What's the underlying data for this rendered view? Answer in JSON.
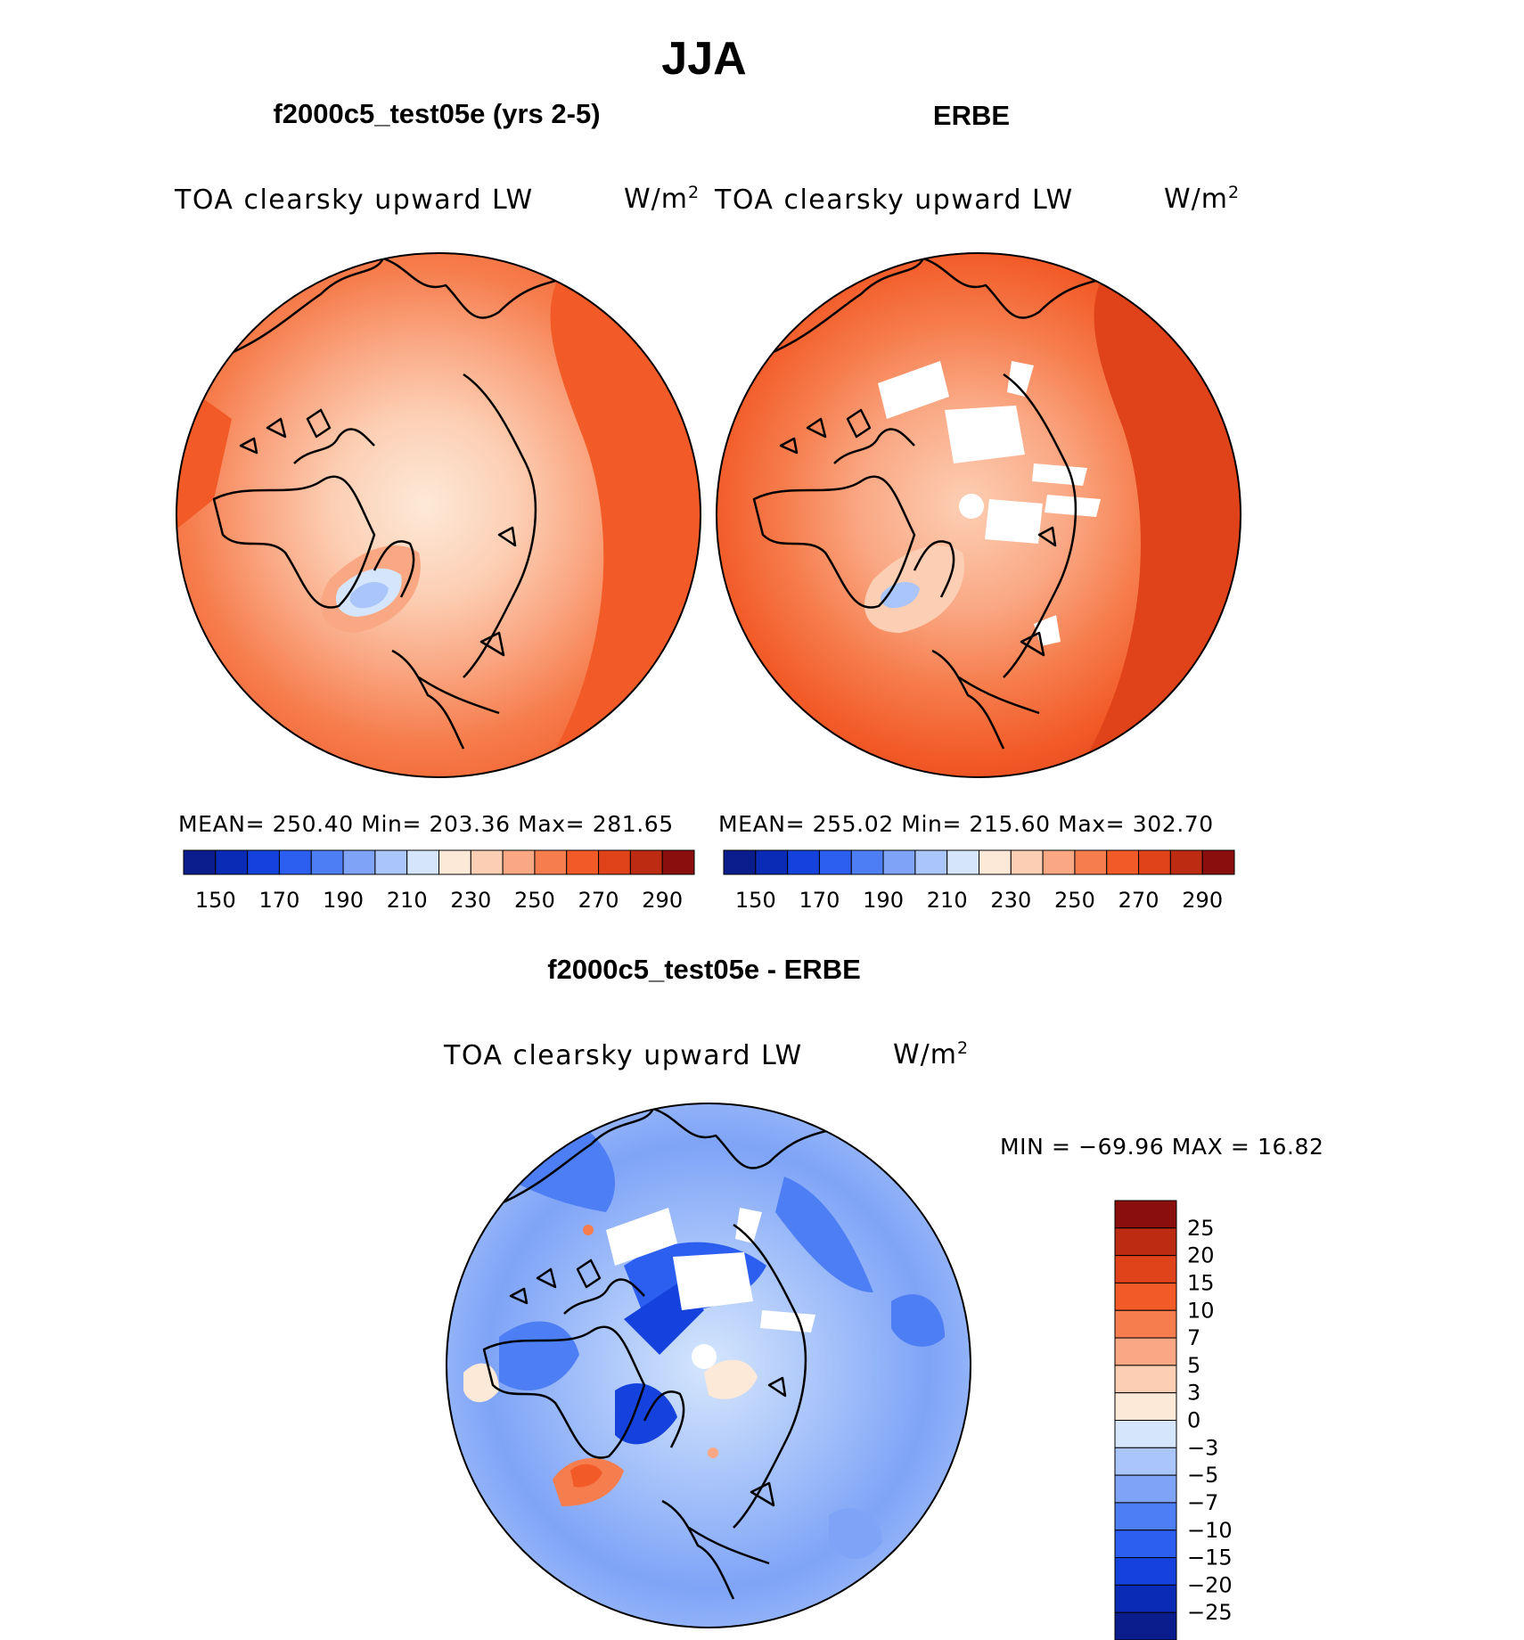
{
  "title": "JJA",
  "colorbar_colors": [
    "#0b1d8c",
    "#0a2bb5",
    "#1542dc",
    "#2c5ef0",
    "#4e7ef4",
    "#7fa4f7",
    "#aac5fa",
    "#d5e6fc",
    "#fde9d8",
    "#fccfb4",
    "#faa884",
    "#f67e4e",
    "#f25a27",
    "#e0421a",
    "#bd2c12",
    "#8b0e0e"
  ],
  "panels": [
    {
      "title": "f2000c5_test05e (yrs 2-5)",
      "variable": "TOA clearsky upward LW",
      "unit_base": "W/m",
      "unit_sup": "2",
      "stats_text": "MEAN= 250.40   Min= 203.36   Max= 281.65"
    },
    {
      "title": "ERBE",
      "variable": "TOA clearsky upward LW",
      "unit_base": "W/m",
      "unit_sup": "2",
      "stats_text": "MEAN= 255.02   Min= 215.60   Max= 302.70"
    },
    {
      "title": "f2000c5_test05e - ERBE",
      "variable": "TOA clearsky upward LW",
      "unit_base": "W/m",
      "unit_sup": "2",
      "stats_text": "MIN = −69.96 MAX =   16.82"
    }
  ],
  "chart_data": [
    {
      "type": "heatmap",
      "projection": "north polar stereographic",
      "title": "f2000c5_test05e (yrs 2-5)",
      "variable": "TOA clearsky upward LW",
      "units": "W/m2",
      "mean": 250.4,
      "min": 203.36,
      "max": 281.65,
      "colorbar": {
        "levels": [
          150,
          160,
          170,
          180,
          190,
          200,
          210,
          220,
          230,
          240,
          250,
          260,
          270,
          280,
          290
        ],
        "tick_labels": [
          "150",
          "170",
          "190",
          "210",
          "230",
          "250",
          "270",
          "290"
        ],
        "orientation": "horizontal"
      }
    },
    {
      "type": "heatmap",
      "projection": "north polar stereographic",
      "title": "ERBE",
      "variable": "TOA clearsky upward LW",
      "units": "W/m2",
      "mean": 255.02,
      "min": 215.6,
      "max": 302.7,
      "colorbar": {
        "levels": [
          150,
          160,
          170,
          180,
          190,
          200,
          210,
          220,
          230,
          240,
          250,
          260,
          270,
          280,
          290
        ],
        "tick_labels": [
          "150",
          "170",
          "190",
          "210",
          "230",
          "250",
          "270",
          "290"
        ],
        "orientation": "horizontal"
      }
    },
    {
      "type": "heatmap",
      "projection": "north polar stereographic",
      "title": "f2000c5_test05e - ERBE",
      "variable": "TOA clearsky upward LW",
      "units": "W/m2",
      "min": -69.96,
      "max": 16.82,
      "colorbar": {
        "tick_labels": [
          "25",
          "20",
          "15",
          "10",
          "7",
          "5",
          "3",
          "0",
          "−3",
          "−5",
          "−7",
          "−10",
          "−15",
          "−20",
          "−25"
        ],
        "orientation": "vertical"
      }
    }
  ]
}
